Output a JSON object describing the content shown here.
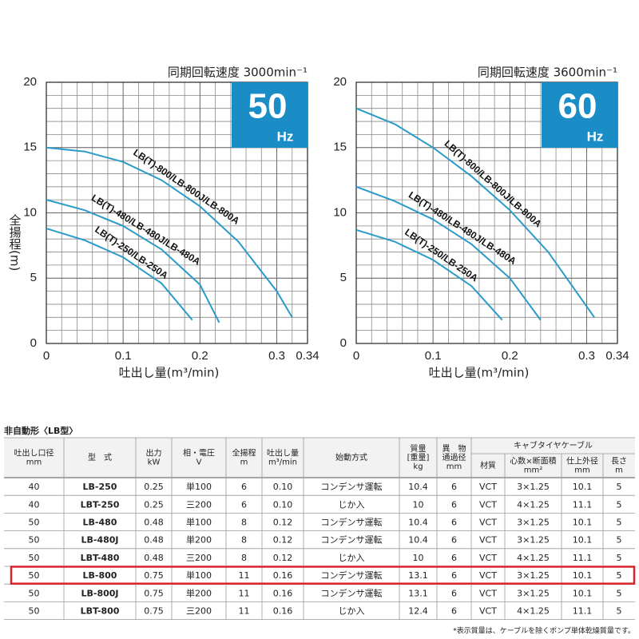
{
  "chart_data": [
    {
      "type": "line",
      "title": "同期回転速度 3000min⁻¹",
      "badge": "50",
      "badge_unit": "Hz",
      "badge_color": "#1a8cc6",
      "y_label": "全揚程(m)",
      "x_label": "吐出し量(m³/min)",
      "xlim": [
        0,
        0.34
      ],
      "xticks": [
        0,
        0.1,
        0.2,
        0.3,
        0.34
      ],
      "ylim": [
        0,
        20
      ],
      "yticks": [
        0,
        5,
        10,
        15,
        20
      ],
      "grid": true,
      "minor_grid_step": [
        0.02,
        1
      ],
      "series": [
        {
          "name": "LB(T)-800/LB-800J/LB-800A",
          "color": "#2a9bc9",
          "x": [
            0,
            0.05,
            0.1,
            0.15,
            0.2,
            0.25,
            0.3,
            0.32
          ],
          "values": [
            15,
            14.7,
            13.9,
            12.5,
            10.5,
            7.8,
            4.0,
            2
          ]
        },
        {
          "name": "LB(T)-480/LB-480J/LB-480A",
          "color": "#2a9bc9",
          "x": [
            0,
            0.05,
            0.1,
            0.15,
            0.2,
            0.225
          ],
          "values": [
            11,
            10.2,
            9,
            7.2,
            4.5,
            1.6
          ]
        },
        {
          "name": "LB(T)-250/LB-250A",
          "color": "#2a9bc9",
          "x": [
            0,
            0.05,
            0.1,
            0.15,
            0.19
          ],
          "values": [
            8.8,
            7.9,
            6.6,
            4.6,
            1.8
          ]
        }
      ]
    },
    {
      "type": "line",
      "title": "同期回転速度 3600min⁻¹",
      "badge": "60",
      "badge_unit": "Hz",
      "badge_color": "#1a8cc6",
      "x_label": "吐出し量(m³/min)",
      "xlim": [
        0,
        0.34
      ],
      "xticks": [
        0,
        0.1,
        0.2,
        0.3,
        0.34
      ],
      "ylim": [
        0,
        20
      ],
      "yticks": [
        0,
        5,
        10,
        15,
        20
      ],
      "grid": true,
      "minor_grid_step": [
        0.02,
        1
      ],
      "series": [
        {
          "name": "LB(T)-800/LB-800J/LB-800A",
          "color": "#2a9bc9",
          "x": [
            0,
            0.05,
            0.1,
            0.15,
            0.2,
            0.25,
            0.31
          ],
          "values": [
            18,
            16.8,
            15,
            12.8,
            10.2,
            7,
            2
          ]
        },
        {
          "name": "LB(T)-480/LB-480J/LB-480A",
          "color": "#2a9bc9",
          "x": [
            0,
            0.05,
            0.1,
            0.15,
            0.2,
            0.24
          ],
          "values": [
            12,
            10.9,
            9.5,
            7.6,
            5,
            1.8
          ]
        },
        {
          "name": "LB(T)-250/LB-250A",
          "color": "#2a9bc9",
          "x": [
            0,
            0.05,
            0.1,
            0.15,
            0.19
          ],
          "values": [
            8.7,
            7.8,
            6.4,
            4.4,
            1.8
          ]
        }
      ]
    }
  ],
  "table": {
    "caption": "非自動形〈LB型〉",
    "header": [
      [
        "吐出し口径",
        "mm"
      ],
      [
        "型　式"
      ],
      [
        "出力",
        "kW"
      ],
      [
        "相・電圧",
        "V"
      ],
      [
        "全揚程",
        "m"
      ],
      [
        "吐出し量",
        "m³/min"
      ],
      [
        "始動方式"
      ],
      [
        "質量",
        "[重量]",
        "kg"
      ],
      [
        "異　物",
        "通過径",
        "mm"
      ]
    ],
    "cable_header": "キャブタイヤケーブル",
    "cable_subheader": [
      [
        "材質"
      ],
      [
        "心数×断面積",
        "mm²"
      ],
      [
        "仕上外径",
        "mm"
      ],
      [
        "長さ",
        "m"
      ]
    ],
    "rows": [
      [
        "40",
        "LB-250",
        "0.25",
        "単100",
        "6",
        "0.10",
        "コンデンサ運転",
        "10.4",
        "6",
        "VCT",
        "3×1.25",
        "10.1",
        "5"
      ],
      [
        "40",
        "LBT-250",
        "0.25",
        "三200",
        "6",
        "0.10",
        "じか入",
        "10",
        "6",
        "VCT",
        "4×1.25",
        "11.1",
        "5"
      ],
      [
        "50",
        "LB-480",
        "0.48",
        "単100",
        "8",
        "0.12",
        "コンデンサ運転",
        "10.4",
        "6",
        "VCT",
        "3×1.25",
        "10.1",
        "5"
      ],
      [
        "50",
        "LB-480J",
        "0.48",
        "単200",
        "8",
        "0.12",
        "コンデンサ運転",
        "10.4",
        "6",
        "VCT",
        "3×1.25",
        "10.1",
        "5"
      ],
      [
        "50",
        "LBT-480",
        "0.48",
        "三200",
        "8",
        "0.12",
        "じか入",
        "10",
        "6",
        "VCT",
        "4×1.25",
        "11.1",
        "5"
      ],
      [
        "50",
        "LB-800",
        "0.75",
        "単100",
        "11",
        "0.16",
        "コンデンサ運転",
        "13.1",
        "6",
        "VCT",
        "3×1.25",
        "10.1",
        "5"
      ],
      [
        "50",
        "LB-800J",
        "0.75",
        "単200",
        "11",
        "0.16",
        "コンデンサ運転",
        "13.1",
        "6",
        "VCT",
        "3×1.25",
        "10.1",
        "5"
      ],
      [
        "50",
        "LBT-800",
        "0.75",
        "三200",
        "11",
        "0.16",
        "じか入",
        "12.4",
        "6",
        "VCT",
        "4×1.25",
        "11.1",
        "5"
      ]
    ],
    "highlight_row": 5,
    "footnote": "*表示質量は、ケーブルを除くポンプ単体乾燥質量です。"
  }
}
